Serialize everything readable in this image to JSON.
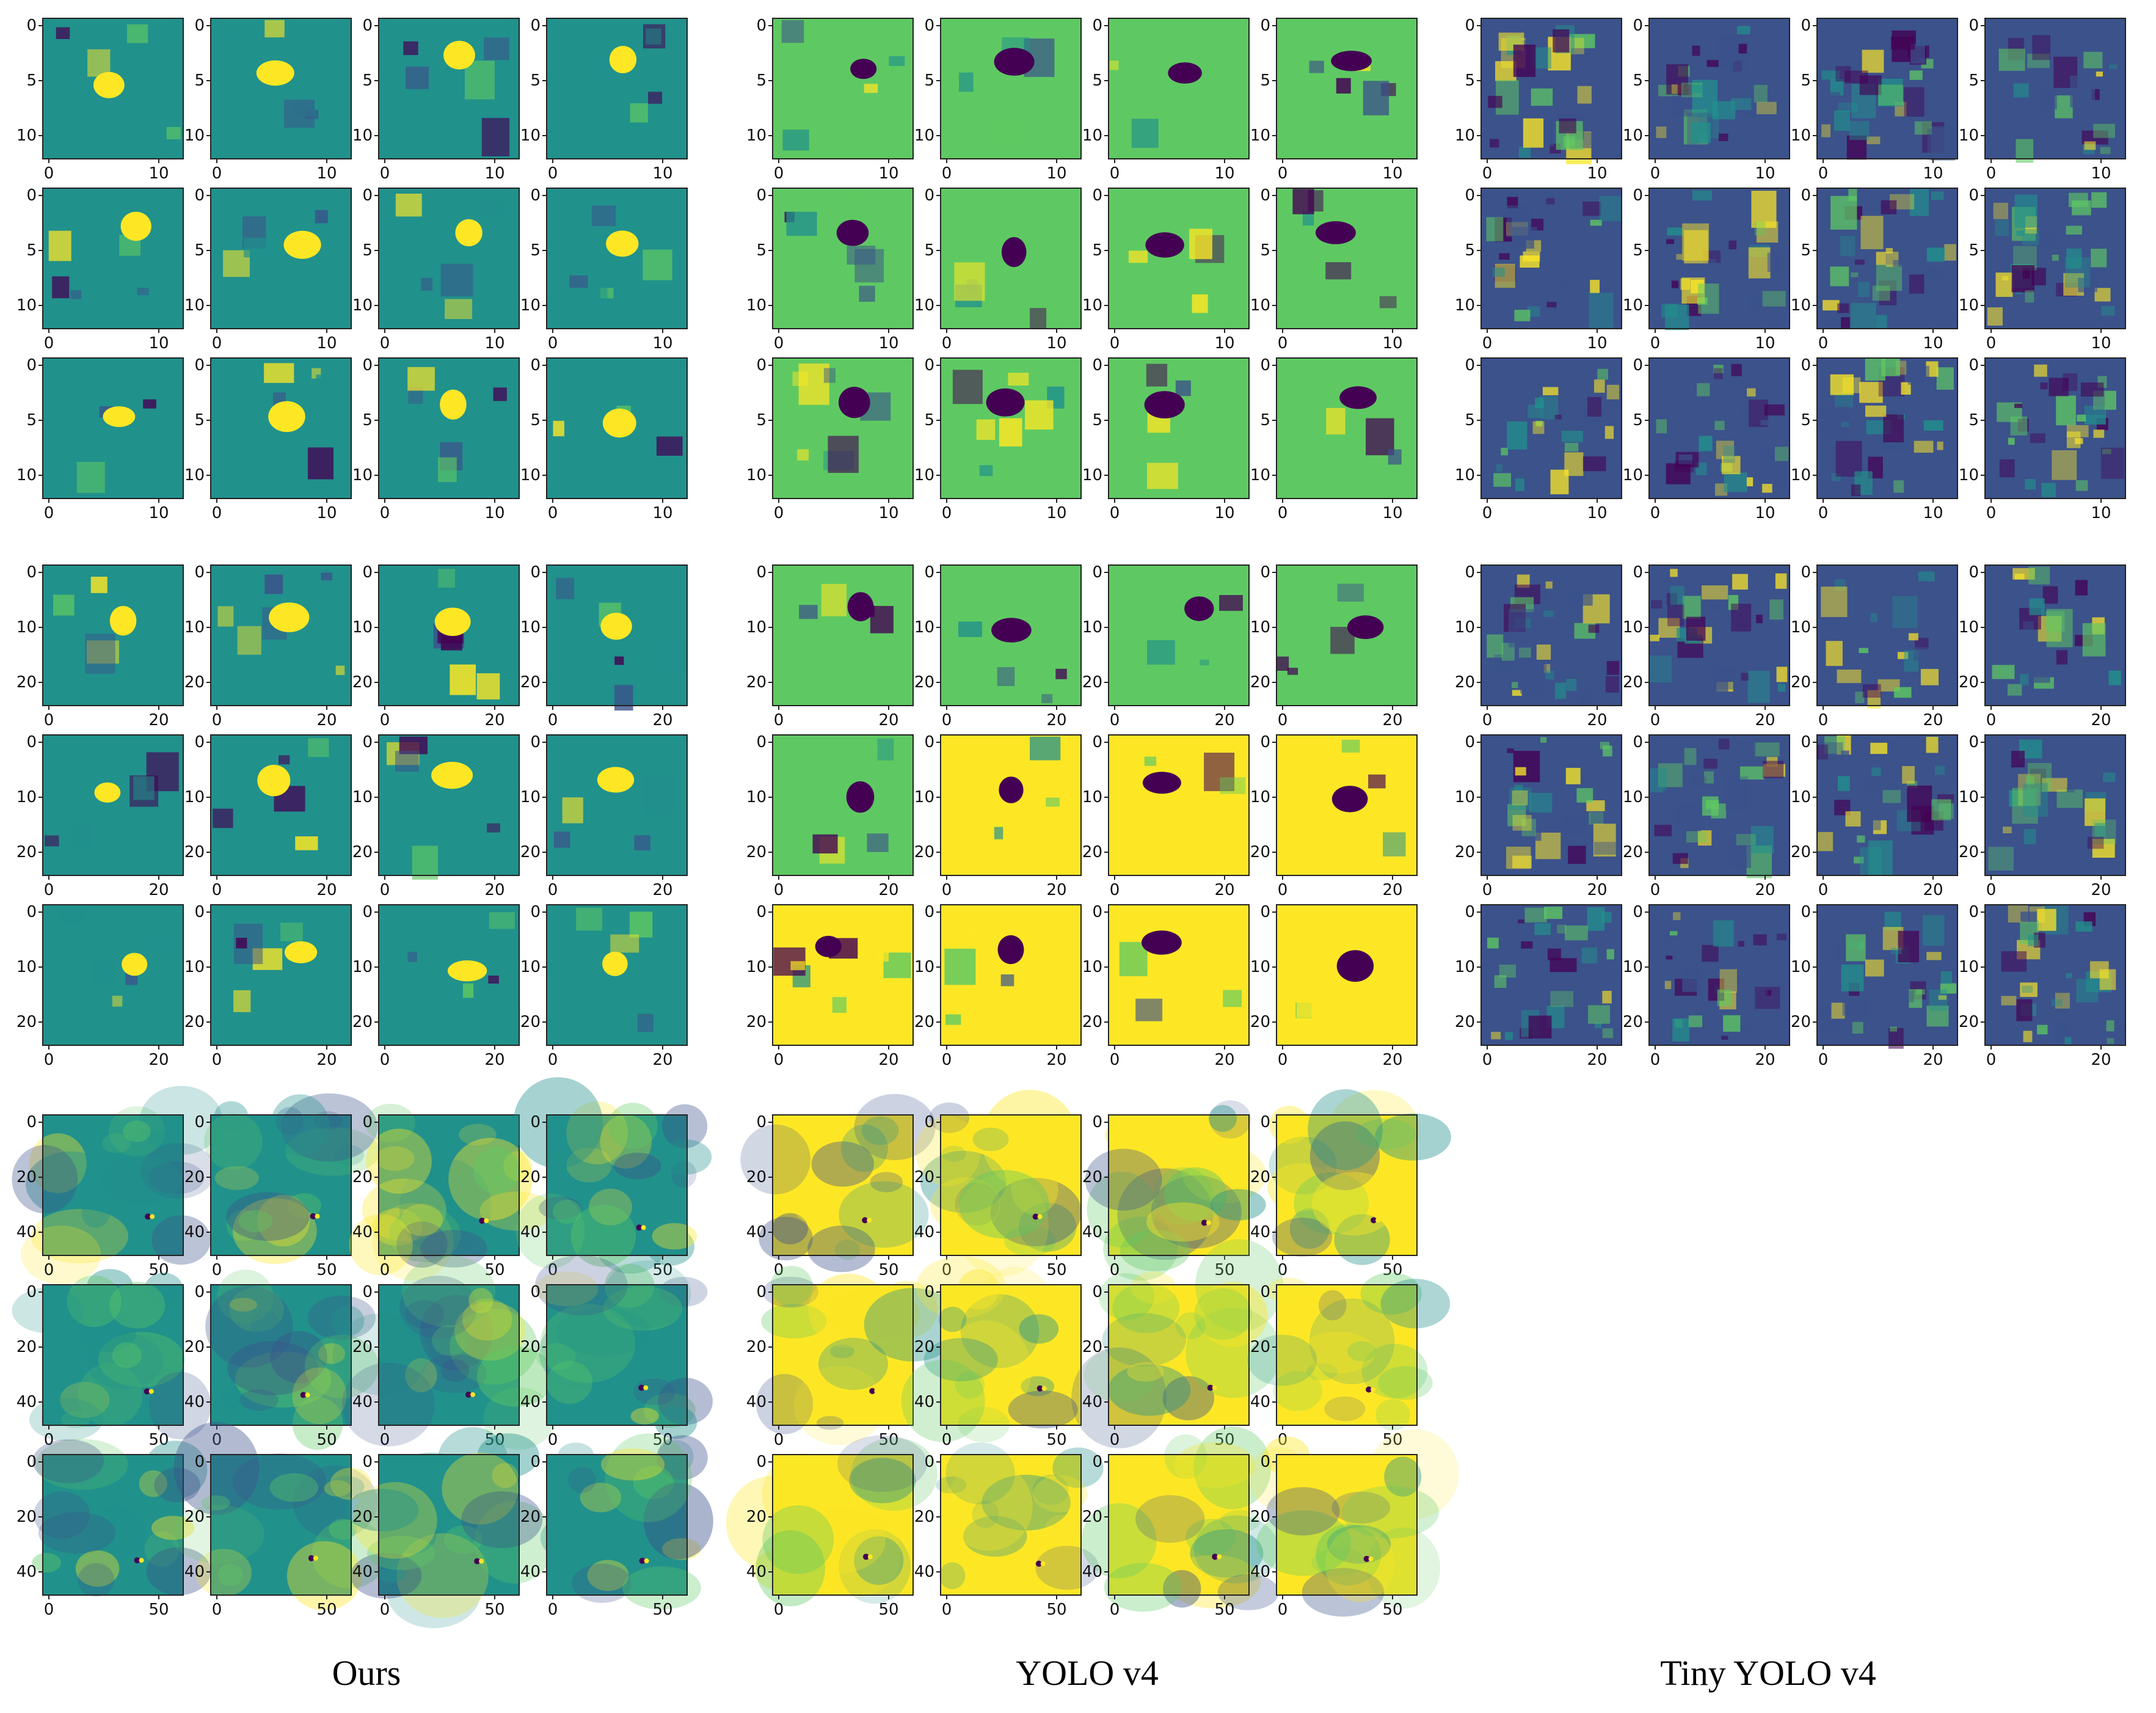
{
  "figure": {
    "captions": [
      "Ours",
      "YOLO v4",
      "Tiny YOLO v4"
    ],
    "colormap": [
      "#440154",
      "#3b528b",
      "#21918c",
      "#5ec962",
      "#fde725"
    ],
    "models": [
      {
        "name": "Ours",
        "scales": [
          {
            "size": 13,
            "ticks_y": [
              "0",
              "5",
              "10"
            ],
            "ticks_x": [
              "0",
              "10"
            ],
            "pattern": "blob",
            "rows": 3
          },
          {
            "size": 26,
            "ticks_y": [
              "0",
              "10",
              "20"
            ],
            "ticks_x": [
              "0",
              "20"
            ],
            "pattern": "blob",
            "rows": 3
          },
          {
            "size": 52,
            "ticks_y": [
              "0",
              "20",
              "40"
            ],
            "ticks_x": [
              "0",
              "50"
            ],
            "pattern": "texture",
            "rows": 3
          }
        ]
      },
      {
        "name": "YOLO v4",
        "scales": [
          {
            "size": 13,
            "ticks_y": [
              "0",
              "5",
              "10"
            ],
            "ticks_x": [
              "0",
              "10"
            ],
            "pattern": "blob",
            "rows": 3
          },
          {
            "size": 26,
            "ticks_y": [
              "0",
              "10",
              "20"
            ],
            "ticks_x": [
              "0",
              "20"
            ],
            "pattern": "blob",
            "rows": 3
          },
          {
            "size": 52,
            "ticks_y": [
              "0",
              "20",
              "40"
            ],
            "ticks_x": [
              "0",
              "50"
            ],
            "pattern": "texture",
            "rows": 3
          }
        ]
      },
      {
        "name": "Tiny YOLO v4",
        "scales": [
          {
            "size": 13,
            "ticks_y": [
              "0",
              "5",
              "10"
            ],
            "ticks_x": [
              "0",
              "10"
            ],
            "pattern": "noisy",
            "rows": 3
          },
          {
            "size": 26,
            "ticks_y": [
              "0",
              "10",
              "20"
            ],
            "ticks_x": [
              "0",
              "20"
            ],
            "pattern": "noisy",
            "rows": 3
          }
        ]
      }
    ]
  }
}
